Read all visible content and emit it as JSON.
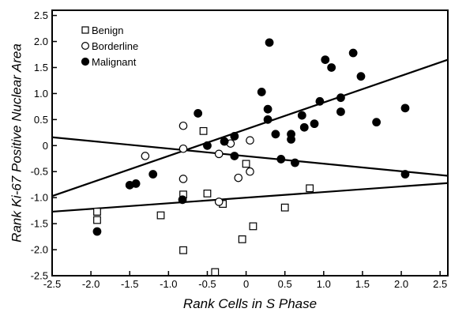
{
  "chart_data": {
    "type": "scatter",
    "title": "",
    "xlabel": "Rank Cells in S Phase",
    "ylabel": "Rank Ki-67 Positive Nuclear Area",
    "xlim": [
      -2.5,
      2.6
    ],
    "ylim": [
      -2.5,
      2.6
    ],
    "xticks": [
      -2.5,
      -2.0,
      -1.5,
      -1.0,
      -0.5,
      0,
      0.5,
      1.0,
      1.5,
      2.0,
      2.5
    ],
    "xtick_labels": [
      "-2.5",
      "-2.0",
      "-1.5",
      "-1.0",
      "-0.5",
      "0",
      "0.5",
      "1.0",
      "1.5",
      "2.0",
      "2.5"
    ],
    "yticks": [
      -2.5,
      -2.0,
      -1.5,
      -1.0,
      -0.5,
      0,
      0.5,
      1.0,
      1.5,
      2.0,
      2.5
    ],
    "ytick_labels": [
      "-2.5",
      "-2.0",
      "-1.5",
      "-1.0",
      "-0.5",
      "0",
      "0.5",
      "1.0",
      "1.5",
      "2.0",
      "2.5"
    ],
    "grid": false,
    "legend_position": "top-left",
    "series": [
      {
        "name": "Benign",
        "marker": "open-square",
        "color": "#000000",
        "points": [
          [
            -1.92,
            -1.27
          ],
          [
            -1.92,
            -1.43
          ],
          [
            -1.1,
            -1.34
          ],
          [
            -0.81,
            -0.94
          ],
          [
            -0.81,
            -2.01
          ],
          [
            -0.55,
            0.28
          ],
          [
            -0.5,
            -0.92
          ],
          [
            -0.3,
            -1.12
          ],
          [
            -0.4,
            -2.43
          ],
          [
            0.0,
            -0.35
          ],
          [
            -0.05,
            -1.8
          ],
          [
            0.09,
            -1.55
          ],
          [
            0.5,
            -1.19
          ],
          [
            0.82,
            -0.82
          ]
        ]
      },
      {
        "name": "Borderline",
        "marker": "open-circle",
        "color": "#000000",
        "points": [
          [
            -1.3,
            -0.2
          ],
          [
            -0.81,
            0.38
          ],
          [
            -0.81,
            -0.06
          ],
          [
            -0.81,
            -0.64
          ],
          [
            -0.35,
            -0.16
          ],
          [
            -0.2,
            0.04
          ],
          [
            -0.1,
            -0.62
          ],
          [
            0.05,
            0.1
          ],
          [
            0.05,
            -0.5
          ],
          [
            -0.35,
            -1.08
          ]
        ]
      },
      {
        "name": "Malignant",
        "marker": "filled-circle",
        "color": "#000000",
        "points": [
          [
            -1.92,
            -1.65
          ],
          [
            -1.5,
            -0.76
          ],
          [
            -1.42,
            -0.73
          ],
          [
            -1.2,
            -0.55
          ],
          [
            -0.82,
            -1.04
          ],
          [
            -0.62,
            0.62
          ],
          [
            -0.5,
            0.0
          ],
          [
            -0.28,
            0.08
          ],
          [
            -0.15,
            0.18
          ],
          [
            -0.15,
            -0.2
          ],
          [
            0.2,
            1.03
          ],
          [
            0.28,
            0.7
          ],
          [
            0.28,
            0.5
          ],
          [
            0.3,
            1.98
          ],
          [
            0.38,
            0.22
          ],
          [
            0.45,
            -0.26
          ],
          [
            0.58,
            0.22
          ],
          [
            0.58,
            0.12
          ],
          [
            0.63,
            -0.33
          ],
          [
            0.72,
            0.58
          ],
          [
            0.75,
            0.35
          ],
          [
            0.88,
            0.42
          ],
          [
            0.95,
            0.85
          ],
          [
            1.02,
            1.65
          ],
          [
            1.1,
            1.5
          ],
          [
            1.22,
            0.92
          ],
          [
            1.22,
            0.65
          ],
          [
            1.38,
            1.78
          ],
          [
            1.48,
            1.33
          ],
          [
            1.68,
            0.45
          ],
          [
            2.05,
            0.72
          ],
          [
            2.05,
            -0.55
          ]
        ]
      }
    ],
    "regression_lines": [
      {
        "from": [
          -2.5,
          -0.97
        ],
        "to": [
          2.6,
          1.65
        ]
      },
      {
        "from": [
          -2.5,
          0.16
        ],
        "to": [
          2.6,
          -0.58
        ]
      },
      {
        "from": [
          -2.5,
          -1.27
        ],
        "to": [
          2.6,
          -0.72
        ]
      }
    ]
  }
}
